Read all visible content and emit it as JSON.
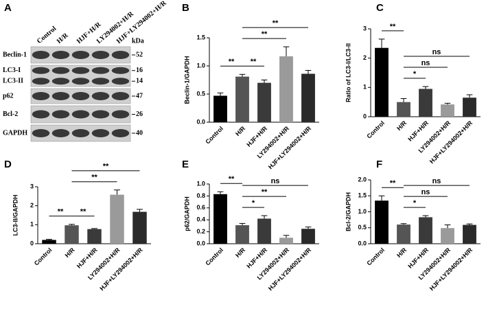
{
  "blot": {
    "label": "A",
    "unit": "kDa",
    "lanes": [
      "Control",
      "H/R",
      "HJF+H/R",
      "LY294002+H/R",
      "HJF+LY294002+H/R"
    ],
    "rows": [
      {
        "names": [
          "Beclin-1"
        ],
        "markers": [
          52
        ]
      },
      {
        "names": [
          "LC3-I",
          "LC3-II"
        ],
        "markers": [
          16,
          14
        ]
      },
      {
        "names": [
          "p62"
        ],
        "markers": [
          47
        ]
      },
      {
        "names": [
          "Bcl-2"
        ],
        "markers": [
          26
        ]
      },
      {
        "names": [
          "GAPDH"
        ],
        "markers": [
          40
        ]
      }
    ]
  },
  "chart_data": [
    {
      "type": "bar",
      "label": "B",
      "ylabel": "Beclin-1/GAPDH",
      "categories": [
        "Control",
        "H/R",
        "HJF+H/R",
        "LY294002+H/R",
        "HJF+LY294002+H/R"
      ],
      "values": [
        0.47,
        0.81,
        0.7,
        1.17,
        0.86
      ],
      "errors": [
        0.05,
        0.04,
        0.05,
        0.17,
        0.06
      ],
      "colors": [
        "#000000",
        "#555555",
        "#3a3a3a",
        "#9a9a9a",
        "#2a2a2a"
      ],
      "ylim": [
        0,
        1.5
      ],
      "yticks": [
        {
          "value": 0,
          "label": "0.0"
        },
        0.5,
        {
          "value": 1,
          "label": "1.0"
        },
        1.5
      ],
      "brackets": [
        {
          "from": 0,
          "to": 1,
          "label": "**"
        },
        {
          "from": 1,
          "to": 2,
          "label": "**"
        },
        {
          "from": 1,
          "to": 3,
          "label": "**"
        },
        {
          "from": 1,
          "to": 4,
          "label": "**"
        }
      ]
    },
    {
      "type": "bar",
      "label": "C",
      "ylabel": "Ratio of LC3-I/LC3-II",
      "categories": [
        "Control",
        "H/R",
        "HJF+H/R",
        "LY294002+H/R",
        "HJF+LY294002+H/R"
      ],
      "values": [
        2.35,
        0.5,
        0.95,
        0.42,
        0.65
      ],
      "errors": [
        0.3,
        0.12,
        0.08,
        0.04,
        0.1
      ],
      "colors": [
        "#000000",
        "#555555",
        "#3a3a3a",
        "#9a9a9a",
        "#2a2a2a"
      ],
      "ylim": [
        0,
        3
      ],
      "yticks": [
        0,
        1,
        2,
        3
      ],
      "brackets": [
        {
          "from": 0,
          "to": 1,
          "label": "**"
        },
        {
          "from": 1,
          "to": 2,
          "label": "*"
        },
        {
          "from": 1,
          "to": 3,
          "label": "ns"
        },
        {
          "from": 1,
          "to": 4,
          "label": "ns"
        }
      ]
    },
    {
      "type": "bar",
      "label": "D",
      "ylabel": "LC3-II/GAPDH",
      "categories": [
        "Control",
        "H/R",
        "HJF+H/R",
        "LY294002+H/R",
        "HJF+LY294002+H/R"
      ],
      "values": [
        0.2,
        0.97,
        0.77,
        2.58,
        1.68
      ],
      "errors": [
        0.03,
        0.05,
        0.03,
        0.25,
        0.13
      ],
      "colors": [
        "#000000",
        "#555555",
        "#3a3a3a",
        "#9a9a9a",
        "#2a2a2a"
      ],
      "ylim": [
        0,
        3
      ],
      "yticks": [
        0,
        1,
        2,
        3
      ],
      "brackets": [
        {
          "from": 0,
          "to": 1,
          "label": "**"
        },
        {
          "from": 1,
          "to": 2,
          "label": "**"
        },
        {
          "from": 1,
          "to": 3,
          "label": "**"
        },
        {
          "from": 1,
          "to": 4,
          "label": "**"
        }
      ]
    },
    {
      "type": "bar",
      "label": "E",
      "ylabel": "p62/GAPDH",
      "categories": [
        "Control",
        "H/R",
        "HJF+H/R",
        "LY294002+H/R",
        "HJF+LY294002+H/R"
      ],
      "values": [
        0.83,
        0.31,
        0.42,
        0.1,
        0.25
      ],
      "errors": [
        0.04,
        0.03,
        0.05,
        0.04,
        0.03
      ],
      "colors": [
        "#000000",
        "#555555",
        "#3a3a3a",
        "#9a9a9a",
        "#2a2a2a"
      ],
      "ylim": [
        0,
        1
      ],
      "yticks": [
        {
          "value": 0,
          "label": "0.0"
        },
        0.2,
        0.4,
        0.6,
        0.8,
        {
          "value": 1,
          "label": "1.0"
        }
      ],
      "brackets": [
        {
          "from": 0,
          "to": 1,
          "label": "**"
        },
        {
          "from": 1,
          "to": 2,
          "label": "*"
        },
        {
          "from": 1,
          "to": 3,
          "label": "**"
        },
        {
          "from": 1,
          "to": 4,
          "label": "ns"
        }
      ]
    },
    {
      "type": "bar",
      "label": "F",
      "ylabel": "Bcl-2/GAPDH",
      "categories": [
        "Control",
        "H/R",
        "HJF+H/R",
        "LY294002+H/R",
        "HJF+LY294002+H/R"
      ],
      "values": [
        1.35,
        0.6,
        0.83,
        0.49,
        0.59
      ],
      "errors": [
        0.15,
        0.03,
        0.05,
        0.1,
        0.03
      ],
      "colors": [
        "#000000",
        "#555555",
        "#3a3a3a",
        "#9a9a9a",
        "#2a2a2a"
      ],
      "ylim": [
        0,
        2
      ],
      "yticks": [
        {
          "value": 0,
          "label": "0.0"
        },
        0.5,
        {
          "value": 1,
          "label": "1.0"
        },
        1.5,
        {
          "value": 2,
          "label": "2.0"
        }
      ],
      "brackets": [
        {
          "from": 0,
          "to": 1,
          "label": "**"
        },
        {
          "from": 1,
          "to": 2,
          "label": "*"
        },
        {
          "from": 1,
          "to": 3,
          "label": "ns"
        },
        {
          "from": 1,
          "to": 4,
          "label": "ns"
        }
      ]
    }
  ]
}
